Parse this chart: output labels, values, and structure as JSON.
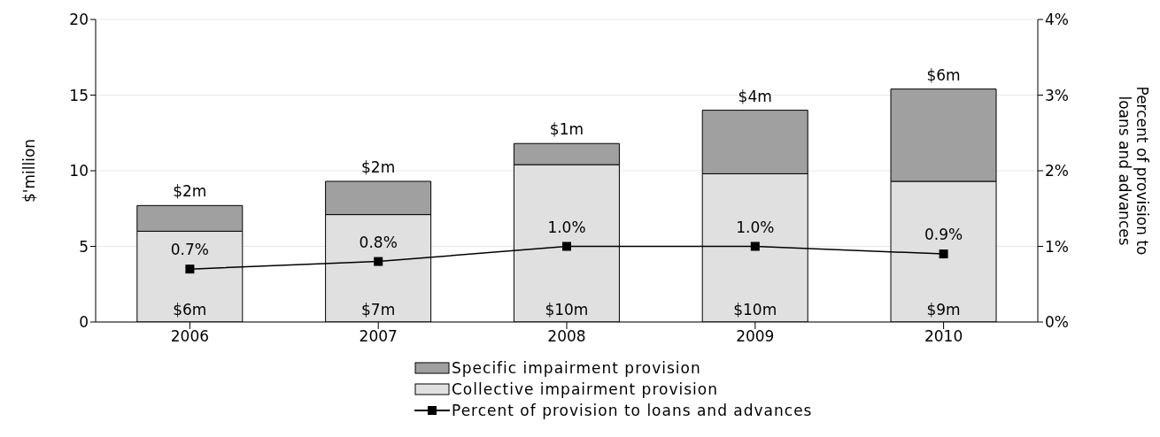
{
  "chart_data": {
    "type": "bar",
    "stacked": true,
    "categories": [
      "2006",
      "2007",
      "2008",
      "2009",
      "2010"
    ],
    "series": [
      {
        "name": "Collective impairment provision",
        "color": "#e0e0e0",
        "values": [
          6.0,
          7.1,
          10.4,
          9.8,
          9.3
        ],
        "value_labels": [
          "$6m",
          "$7m",
          "$10m",
          "$10m",
          "$9m"
        ]
      },
      {
        "name": "Specific impairment provision",
        "color": "#a0a0a0",
        "values": [
          1.7,
          2.2,
          1.4,
          4.2,
          6.1
        ],
        "value_labels": [
          "$2m",
          "$2m",
          "$1m",
          "$4m",
          "$6m"
        ]
      },
      {
        "name": "Percent of provision to loans and advances",
        "type": "line",
        "axis": "y2",
        "color": "#000000",
        "marker": "square",
        "values": [
          0.7,
          0.8,
          1.0,
          1.0,
          0.9
        ],
        "value_labels": [
          "0.7%",
          "0.8%",
          "1.0%",
          "1.0%",
          "0.9%"
        ]
      }
    ],
    "ylabel": "$'million",
    "y2label": "Percent of provision to loans and advances",
    "ylim": [
      0,
      20
    ],
    "yticks": [
      0,
      5,
      10,
      15,
      20
    ],
    "y2lim": [
      0,
      4
    ],
    "y2ticks": [
      {
        "value": 0,
        "label": "0%"
      },
      {
        "value": 1,
        "label": "1%"
      },
      {
        "value": 2,
        "label": "2%"
      },
      {
        "value": 3,
        "label": "3%"
      },
      {
        "value": 4,
        "label": "4%"
      }
    ],
    "grid": "y",
    "legend": "bottom"
  }
}
